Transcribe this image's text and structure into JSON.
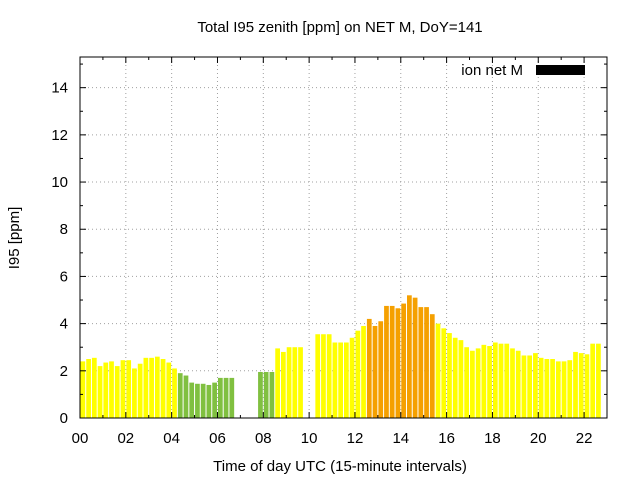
{
  "chart_data": {
    "type": "bar",
    "title": "Total I95 zenith [ppm] on NET M, DoY=141",
    "xlabel": "Time of day UTC (15-minute intervals)",
    "ylabel": "I95 [ppm]",
    "xlim": [
      0,
      23.0
    ],
    "ylim": [
      0,
      15.3
    ],
    "x_ticks": [
      "00",
      "02",
      "04",
      "06",
      "08",
      "10",
      "12",
      "14",
      "16",
      "18",
      "20",
      "22"
    ],
    "x_tick_values": [
      0,
      2,
      4,
      6,
      8,
      10,
      12,
      14,
      16,
      18,
      20,
      22
    ],
    "y_ticks": [
      0,
      2,
      4,
      6,
      8,
      10,
      12,
      14
    ],
    "grid": true,
    "legend": {
      "label": "ion net M",
      "color": "#000000",
      "position": "top-right"
    },
    "bar_width_hours": 0.25,
    "colors": {
      "yellow": "#ffff00",
      "green": "#80c040",
      "orange": "#f5a000"
    },
    "series": [
      {
        "start_hour": 0.0,
        "color": "yellow",
        "values": [
          2.4,
          2.5,
          2.55,
          2.2,
          2.35,
          2.4,
          2.2,
          2.45,
          2.45,
          2.1,
          2.3,
          2.55,
          2.55,
          2.6,
          2.5,
          2.35,
          2.1
        ]
      },
      {
        "start_hour": 4.25,
        "color": "green",
        "values": [
          1.9,
          1.8,
          1.5,
          1.45,
          1.45,
          1.4,
          1.5,
          1.7,
          1.7,
          1.7
        ]
      },
      {
        "start_hour": 7.75,
        "color": "green",
        "values": [
          1.95,
          1.95,
          1.95
        ]
      },
      {
        "start_hour": 8.5,
        "color": "yellow",
        "values": [
          2.95,
          2.8,
          3.0,
          3.0,
          3.0
        ]
      },
      {
        "start_hour": 10.25,
        "color": "yellow",
        "values": [
          3.55,
          3.55,
          3.55,
          3.2,
          3.2,
          3.2,
          3.4,
          3.7,
          3.9
        ]
      },
      {
        "start_hour": 12.5,
        "color": "orange",
        "values": [
          4.2,
          3.9,
          4.1,
          4.75,
          4.75,
          4.65,
          4.85,
          5.2,
          5.1,
          4.7,
          4.7,
          4.4
        ]
      },
      {
        "start_hour": 15.5,
        "color": "yellow",
        "values": [
          4.0,
          3.8,
          3.6,
          3.4,
          3.3,
          3.0,
          2.85,
          2.95,
          3.1,
          3.05,
          3.2,
          3.15,
          3.15,
          2.95,
          2.85,
          2.65,
          2.65,
          2.75,
          2.55,
          2.5,
          2.5,
          2.4,
          2.4,
          2.45,
          2.8,
          2.75,
          2.7,
          3.15,
          3.15
        ]
      }
    ]
  }
}
